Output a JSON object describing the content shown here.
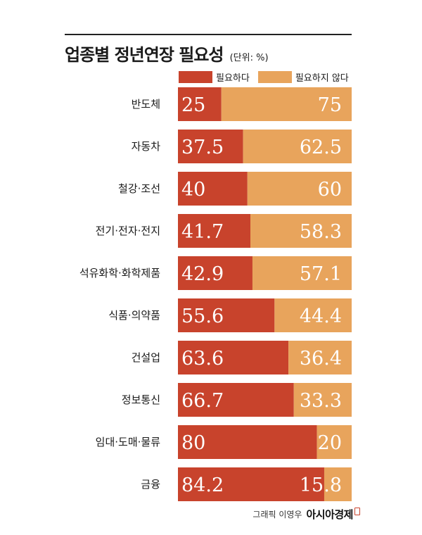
{
  "title": "업종별 정년연장 필요성",
  "unit": "(단위: %)",
  "footer": {
    "credit": "그래픽 이영우",
    "logo": "아시아경제"
  },
  "chart_data": {
    "type": "bar",
    "orientation": "horizontal",
    "stacked": true,
    "title": "업종별 정년연장 필요성",
    "xlim": [
      0,
      100
    ],
    "grid": false,
    "legend": "top",
    "categories": [
      "반도체",
      "자동차",
      "철강·조선",
      "전기·전자·전지",
      "석유화학·화학제품",
      "식품·의약품",
      "건설업",
      "정보통신",
      "임대·도매·물류",
      "금융"
    ],
    "series": [
      {
        "name": "필요하다",
        "color": "#c8432c",
        "values": [
          25,
          37.5,
          40,
          41.7,
          42.9,
          55.6,
          63.6,
          66.7,
          80,
          84.2
        ]
      },
      {
        "name": "필요하지 않다",
        "color": "#e8a45c",
        "values": [
          75,
          62.5,
          60,
          58.3,
          57.1,
          44.4,
          36.4,
          33.3,
          20,
          15.8
        ]
      }
    ]
  }
}
